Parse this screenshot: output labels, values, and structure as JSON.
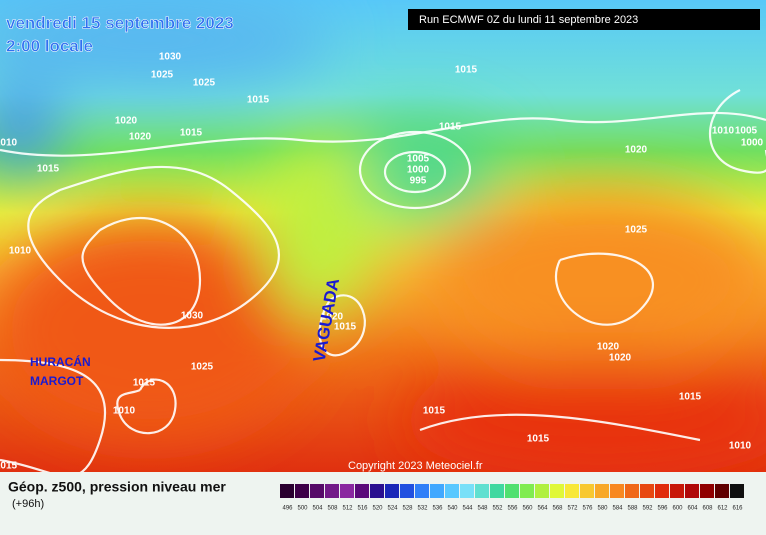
{
  "header": {
    "date": "vendredi 15 septembre 2023",
    "time": "2:00 locale",
    "run": "Run ECMWF 0Z du lundi 11 septembre 2023"
  },
  "map": {
    "annotations": [
      "HURACÁN",
      "MARGOT",
      "VAGUADA"
    ],
    "isobar_labels": [
      "1030",
      "1025",
      "1025",
      "1015",
      "1015",
      "1020",
      "1020",
      "1015",
      "1010",
      "1015",
      "1015",
      "1005",
      "1000",
      "995",
      "1020",
      "1010",
      "1005",
      "1000",
      "1025",
      "1010",
      "1030",
      "1020",
      "1015",
      "1025",
      "1015",
      "1010",
      "1020",
      "1020",
      "1015",
      "1015",
      "1015",
      "1010",
      "1015"
    ],
    "copyright": "Copyright 2023 Meteociel.fr"
  },
  "legend": {
    "title": "Géop. z500, pression niveau mer",
    "subtitle": "(+96h)",
    "labels": [
      "496",
      "500",
      "504",
      "508",
      "512",
      "516",
      "520",
      "524",
      "528",
      "532",
      "536",
      "540",
      "544",
      "548",
      "552",
      "556",
      "560",
      "564",
      "568",
      "572",
      "576",
      "580",
      "584",
      "588",
      "592",
      "596",
      "600",
      "604",
      "608",
      "612",
      "616"
    ],
    "colors": [
      "#2a0030",
      "#3d0048",
      "#560a68",
      "#721a88",
      "#8a28a0",
      "#5a0a7a",
      "#2a1090",
      "#1a28b8",
      "#2050e0",
      "#3080f8",
      "#40a8ff",
      "#58c8ff",
      "#78e0f8",
      "#60e0d0",
      "#40d8a0",
      "#50e070",
      "#80ec50",
      "#b0f040",
      "#e0f838",
      "#f8e838",
      "#f8c830",
      "#f8a828",
      "#f88820",
      "#f06818",
      "#e84810",
      "#e02c0c",
      "#c81808",
      "#b00808",
      "#900000",
      "#600000",
      "#101010"
    ]
  }
}
